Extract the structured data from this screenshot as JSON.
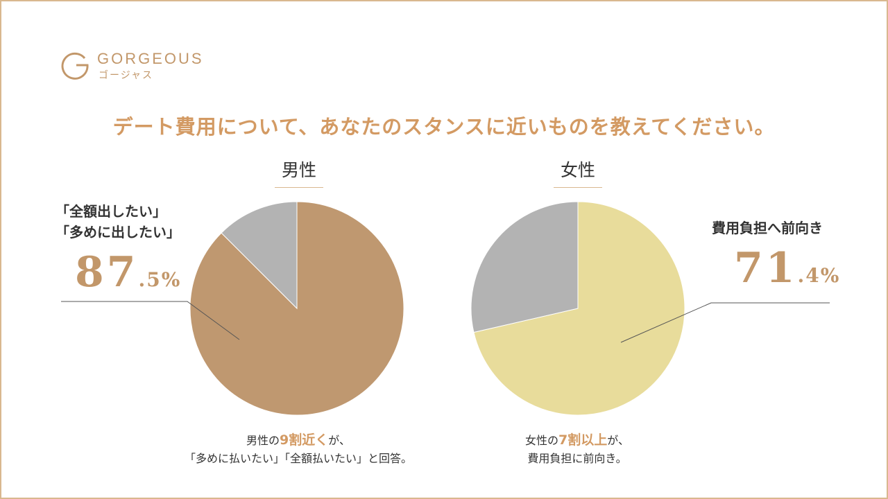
{
  "logo": {
    "name": "GORGEOUS",
    "kana": "ゴージャス",
    "color": "#c2976a"
  },
  "question": "デート費用について、あなたのスタンスに近いものを教えてください。",
  "chart_data": [
    {
      "type": "pie",
      "title": "男性",
      "slices": [
        {
          "label": "「全額出したい」「多めに出したい」",
          "value": 87.5,
          "color": "#bf9870"
        },
        {
          "label": "",
          "value": 12.5,
          "color": "#b3b3b3"
        }
      ],
      "callout": {
        "label_lines": [
          "「全額出したい」",
          "「多めに出したい」"
        ],
        "pct_int": "87",
        "pct_dec": ".5%"
      },
      "summary": {
        "line1_pre": "男性の",
        "line1_hl": "9割近く",
        "line1_post": "が、",
        "line2": "「多めに払いたい」「全額払いたい」と回答。"
      }
    },
    {
      "type": "pie",
      "title": "女性",
      "slices": [
        {
          "label": "費用負担へ前向き",
          "value": 71.4,
          "color": "#e8dc9b"
        },
        {
          "label": "",
          "value": 28.6,
          "color": "#b3b3b3"
        }
      ],
      "callout": {
        "label_lines": [
          "費用負担へ前向き"
        ],
        "pct_int": "71",
        "pct_dec": ".4%"
      },
      "summary": {
        "line1_pre": "女性の",
        "line1_hl": "7割以上",
        "line1_post": "が、",
        "line2": "費用負担に前向き。"
      }
    }
  ]
}
